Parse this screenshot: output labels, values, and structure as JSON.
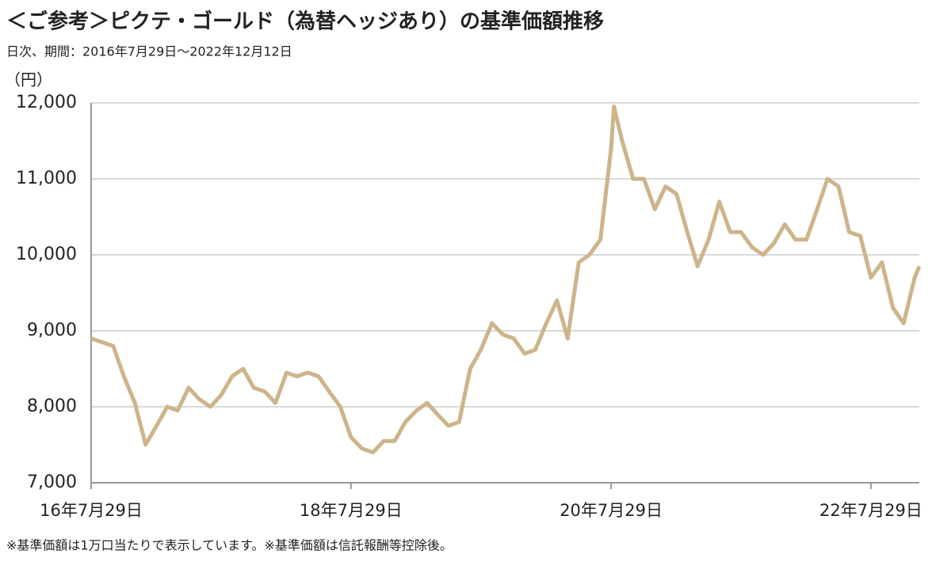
{
  "chart_data": {
    "type": "line",
    "title": "＜ご参考＞ピクテ・ゴールド（為替ヘッジあり）の基準価額推移",
    "subtitle": "日次、期間：2016年7月29日～2022年12月12日",
    "y_label": "（円）",
    "footnote": "※基準価額は1万口当たりで表示しています。※基準価額は信託報酬等控除後。",
    "x": [
      "2016-07-29",
      "2016-08-29",
      "2016-09-29",
      "2016-10-29",
      "2016-11-29",
      "2016-12-29",
      "2017-01-29",
      "2017-02-28",
      "2017-03-29",
      "2017-04-29",
      "2017-05-29",
      "2017-06-29",
      "2017-07-29",
      "2017-08-29",
      "2017-09-29",
      "2017-10-29",
      "2017-11-29",
      "2017-12-29",
      "2018-01-29",
      "2018-02-28",
      "2018-03-29",
      "2018-04-29",
      "2018-05-29",
      "2018-06-29",
      "2018-07-29",
      "2018-08-29",
      "2018-09-29",
      "2018-10-29",
      "2018-11-29",
      "2018-12-29",
      "2019-01-29",
      "2019-02-28",
      "2019-03-29",
      "2019-04-29",
      "2019-05-29",
      "2019-06-29",
      "2019-07-29",
      "2019-08-29",
      "2019-09-29",
      "2019-10-29",
      "2019-11-29",
      "2019-12-29",
      "2020-01-29",
      "2020-02-28",
      "2020-03-29",
      "2020-04-29",
      "2020-05-29",
      "2020-06-29",
      "2020-07-29",
      "2020-08-06",
      "2020-08-29",
      "2020-09-29",
      "2020-10-29",
      "2020-11-29",
      "2020-12-29",
      "2021-01-29",
      "2021-02-28",
      "2021-03-29",
      "2021-04-29",
      "2021-05-29",
      "2021-06-29",
      "2021-07-29",
      "2021-08-29",
      "2021-09-29",
      "2021-10-29",
      "2021-11-29",
      "2021-12-29",
      "2022-01-29",
      "2022-02-28",
      "2022-03-29",
      "2022-04-29",
      "2022-05-29",
      "2022-06-29",
      "2022-07-29",
      "2022-08-29",
      "2022-09-29",
      "2022-10-29",
      "2022-11-29",
      "2022-12-12"
    ],
    "series": [
      {
        "name": "基準価額",
        "color": "#cdb48a",
        "values": [
          8900,
          8850,
          8800,
          8400,
          8050,
          7500,
          7750,
          8000,
          7950,
          8250,
          8100,
          8000,
          8150,
          8400,
          8500,
          8250,
          8200,
          8050,
          8450,
          8400,
          8450,
          8400,
          8200,
          8000,
          7600,
          7450,
          7400,
          7550,
          7550,
          7800,
          7950,
          8050,
          7900,
          7750,
          7800,
          8500,
          8750,
          9100,
          8950,
          8900,
          8700,
          8750,
          9100,
          9400,
          8900,
          9900,
          10000,
          10200,
          11400,
          11950,
          11500,
          11000,
          11000,
          10600,
          10900,
          10800,
          10300,
          9850,
          10200,
          10700,
          10300,
          10300,
          10100,
          10000,
          10150,
          10400,
          10200,
          10200,
          10600,
          11000,
          10900,
          10300,
          10250,
          9700,
          9900,
          9300,
          9100,
          9700,
          9850
        ]
      }
    ],
    "xlim": [
      "2016-07-29",
      "2022-12-12"
    ],
    "xticks": [
      {
        "value": "2016-07-29",
        "label": "16年7月29日"
      },
      {
        "value": "2018-07-29",
        "label": "18年7月29日"
      },
      {
        "value": "2020-07-29",
        "label": "20年7月29日"
      },
      {
        "value": "2022-07-29",
        "label": "22年7月29日"
      }
    ],
    "ylim": [
      7000,
      12000
    ],
    "yticks": [
      {
        "value": 7000,
        "label": "7,000"
      },
      {
        "value": 8000,
        "label": "8,000"
      },
      {
        "value": 9000,
        "label": "9,000"
      },
      {
        "value": 10000,
        "label": "10,000"
      },
      {
        "value": 11000,
        "label": "11,000"
      },
      {
        "value": 12000,
        "label": "12,000"
      }
    ],
    "grid": true
  }
}
